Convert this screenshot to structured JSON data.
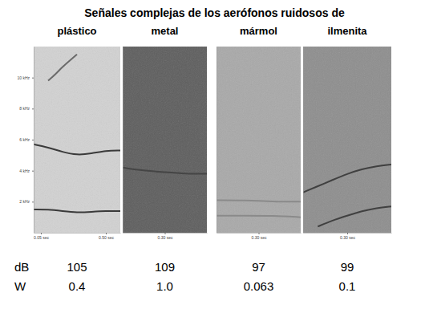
{
  "title": "Señales complejas de los aerófonos ruidosos de",
  "row_labels": [
    "dB",
    "W"
  ],
  "chart_data": [
    {
      "type": "spectrogram",
      "title": "plástico",
      "color": "#d2d2d2",
      "xlim": [
        0,
        0.6
      ],
      "xticks": [
        {
          "value": 0.05,
          "label": "0.05 sec"
        },
        {
          "value": 0.5,
          "label": "0.50 sec"
        }
      ],
      "ylim": [
        0,
        12
      ],
      "yticks": [
        {
          "value": 2,
          "label": "2 kHz"
        },
        {
          "value": 4,
          "label": "4 kHz"
        },
        {
          "value": 6,
          "label": "6 kHz"
        },
        {
          "value": 8,
          "label": "8 kHz"
        },
        {
          "value": 10,
          "label": "10 kHz"
        }
      ],
      "db": 105,
      "w": 0.4,
      "series": [
        {
          "color": "#3a3a3a",
          "x": [
            0,
            0.1,
            0.2,
            0.3,
            0.4,
            0.5,
            0.6
          ],
          "values": [
            5.7,
            5.5,
            5.2,
            5.0,
            5.1,
            5.3,
            5.3
          ]
        },
        {
          "color": "#3a3a3a",
          "x": [
            0,
            0.1,
            0.2,
            0.3,
            0.4,
            0.5,
            0.6
          ],
          "values": [
            1.5,
            1.5,
            1.4,
            1.3,
            1.35,
            1.4,
            1.4
          ]
        },
        {
          "color": "#6a6a6a",
          "x": [
            0.1,
            0.15,
            0.2,
            0.25,
            0.3
          ],
          "values": [
            9.8,
            10.2,
            10.7,
            11.1,
            11.5
          ]
        }
      ]
    },
    {
      "type": "spectrogram",
      "title": "metal",
      "color": "#5e5e5e",
      "tick_labels": "x",
      "xlim": [
        0,
        0.6
      ],
      "xticks": [
        {
          "value": 0.3,
          "label": "0.30 sec"
        }
      ],
      "ylim": [
        0,
        12
      ],
      "db": 109,
      "w": {
        "value": 1,
        "label": "1.0"
      },
      "series": [
        {
          "color": "#454545",
          "x": [
            0,
            0.15,
            0.3,
            0.45,
            0.6
          ],
          "values": [
            4.2,
            4.0,
            3.9,
            3.8,
            3.8
          ]
        }
      ]
    },
    {
      "type": "spectrogram",
      "title": "mármol",
      "color": "#a9a9a9",
      "tick_labels": "x",
      "xlim": [
        0,
        0.6
      ],
      "xticks": [
        {
          "value": 0.3,
          "label": "0.30 sec"
        }
      ],
      "ylim": [
        0,
        12
      ],
      "db": 97,
      "w": 0.063,
      "series": [
        {
          "color": "#8a8a8a",
          "x": [
            0,
            0.2,
            0.4,
            0.6
          ],
          "values": [
            2.1,
            2.1,
            2.0,
            2.0
          ]
        },
        {
          "color": "#8a8a8a",
          "x": [
            0,
            0.2,
            0.4,
            0.6
          ],
          "values": [
            1.1,
            1.1,
            1.1,
            1.0
          ]
        }
      ]
    },
    {
      "type": "spectrogram",
      "title": "ilmenita",
      "color": "#8e8e8e",
      "tick_labels": "x",
      "xlim": [
        0,
        0.6
      ],
      "xticks": [
        {
          "value": 0.3,
          "label": "0.30 sec"
        }
      ],
      "ylim": [
        0,
        12
      ],
      "db": 99,
      "w": 0.1,
      "series": [
        {
          "color": "#404040",
          "x": [
            0,
            0.1,
            0.2,
            0.3,
            0.4,
            0.5,
            0.6
          ],
          "values": [
            2.6,
            3.0,
            3.4,
            3.8,
            4.1,
            4.3,
            4.4
          ]
        },
        {
          "color": "#404040",
          "x": [
            0.1,
            0.2,
            0.3,
            0.4,
            0.5,
            0.6
          ],
          "values": [
            0.4,
            0.8,
            1.1,
            1.4,
            1.6,
            1.7
          ]
        }
      ]
    }
  ]
}
